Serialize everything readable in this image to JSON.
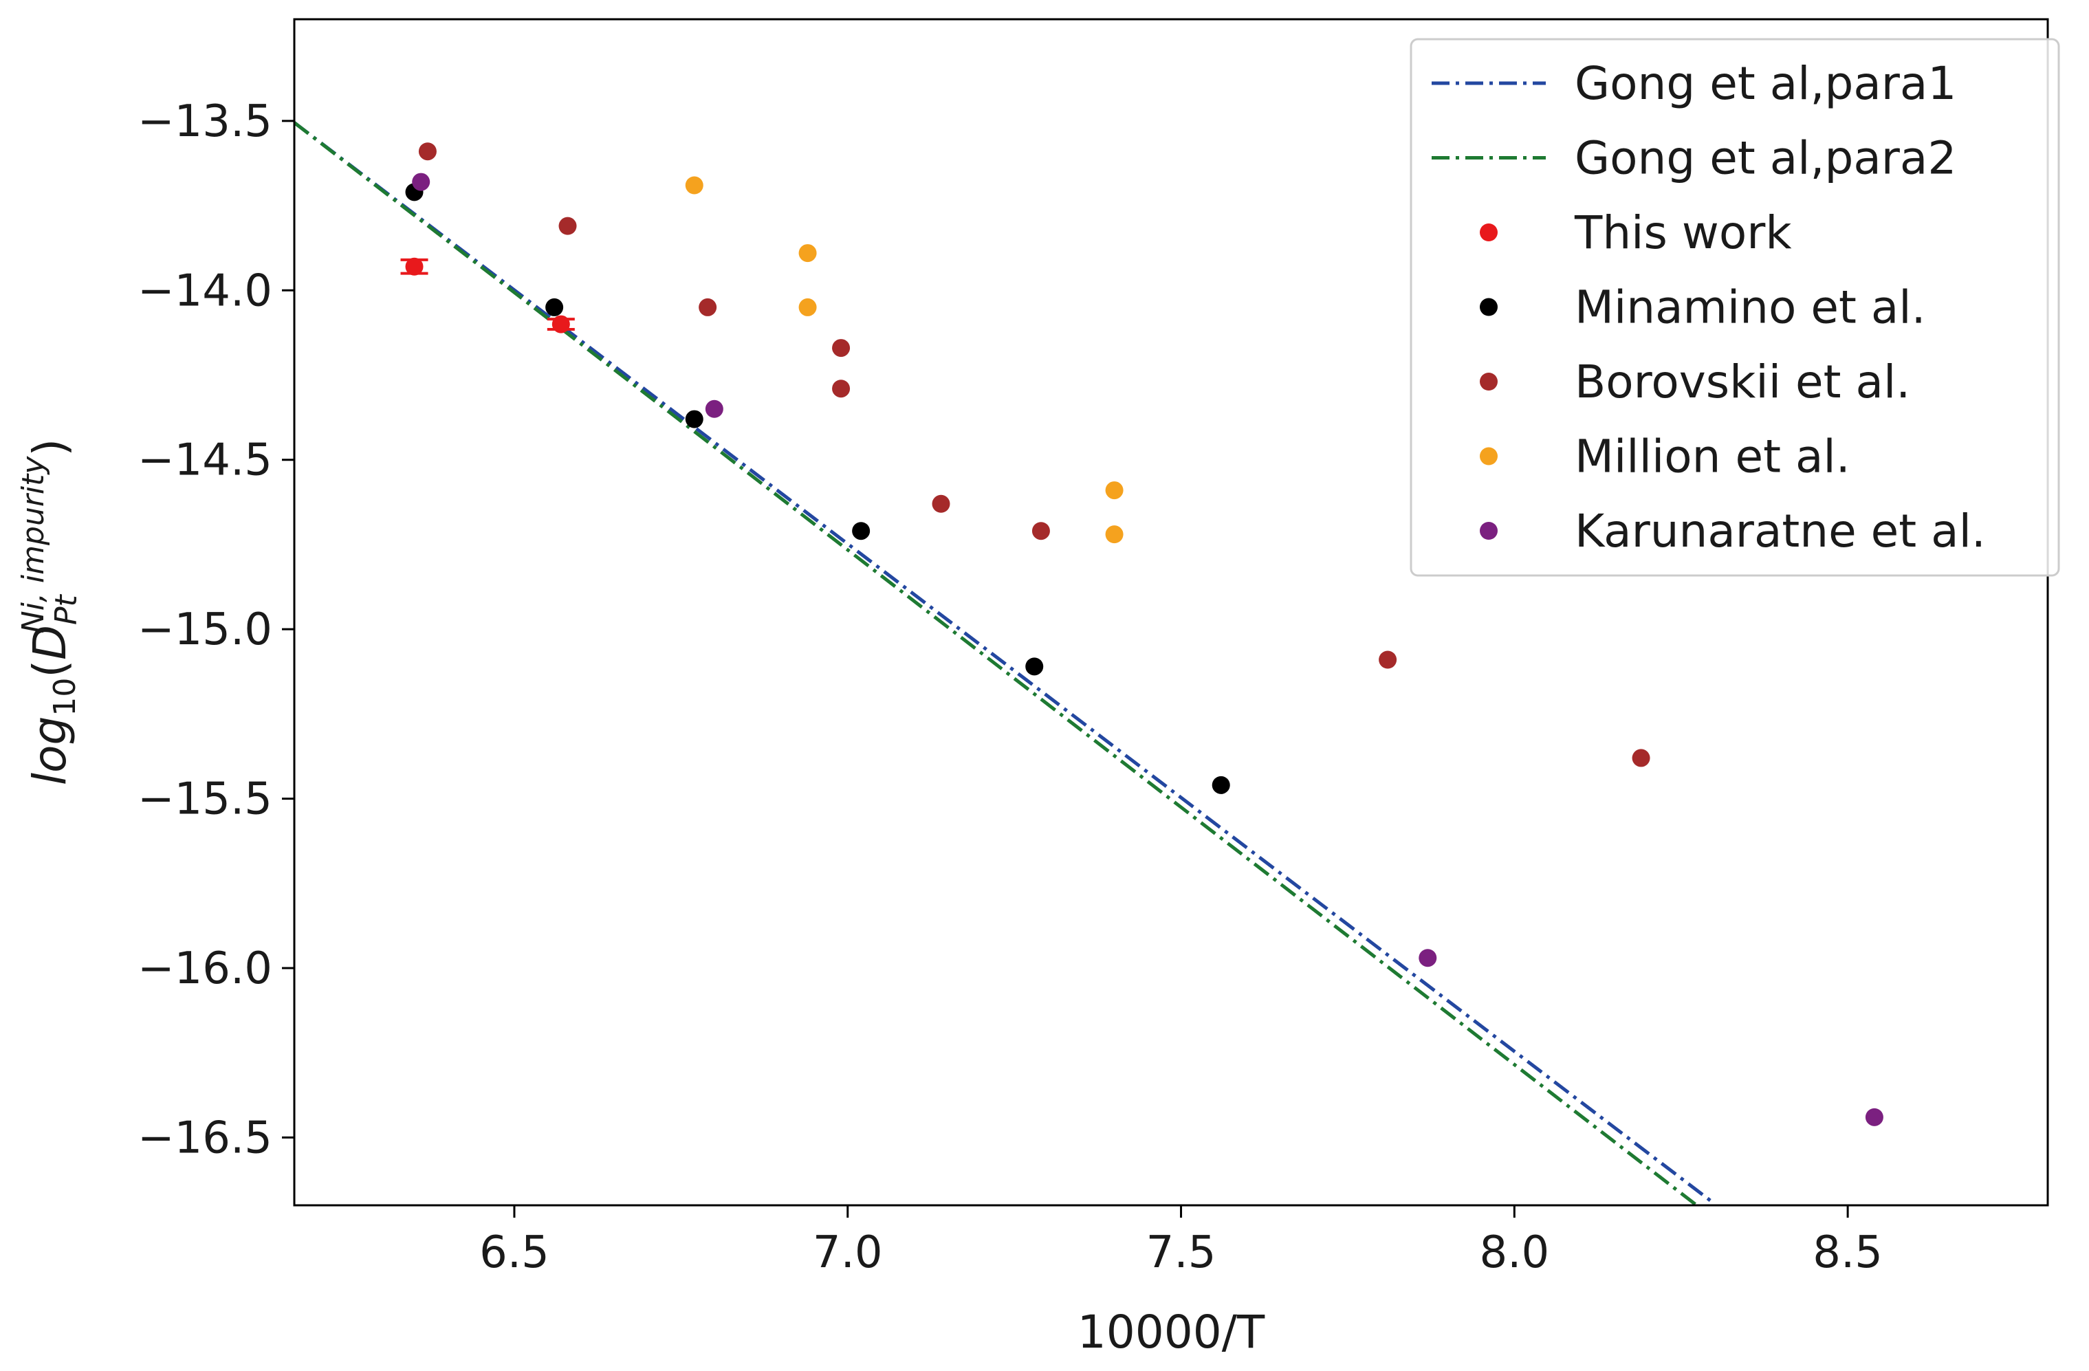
{
  "chart_data": {
    "type": "scatter",
    "title": "",
    "xlabel": "10000/T",
    "ylabel_parts": {
      "base": "log",
      "sub": "10",
      "open": "(",
      "var": "D",
      "var_sub": "Pt",
      "var_sup": "Ni, impurity",
      "close": ")"
    },
    "xlim": [
      6.17,
      8.8
    ],
    "ylim": [
      -16.7,
      -13.2
    ],
    "xticks": [
      6.5,
      7.0,
      7.5,
      8.0,
      8.5
    ],
    "xtick_labels": [
      "6.5",
      "7.0",
      "7.5",
      "8.0",
      "8.5"
    ],
    "yticks": [
      -13.5,
      -14.0,
      -14.5,
      -15.0,
      -15.5,
      -16.0,
      -16.5
    ],
    "ytick_labels": [
      "−13.5",
      "−14.0",
      "−14.5",
      "−15.0",
      "−15.5",
      "−16.0",
      "−16.5"
    ],
    "legend_position": "upper right",
    "lines": [
      {
        "name": "Gong et al,para1",
        "color": "#2347a0",
        "style": "dashdot",
        "x": [
          6.17,
          8.3
        ],
        "y": [
          -13.505,
          -16.695
        ]
      },
      {
        "name": "Gong et al,para2",
        "color": "#1e7a32",
        "style": "dashdot",
        "x": [
          6.17,
          8.28
        ],
        "y": [
          -13.505,
          -16.71
        ]
      }
    ],
    "series": [
      {
        "name": "This work",
        "color": "#e8191c",
        "errorbars": true,
        "points": [
          [
            6.35,
            -13.93,
            0.02
          ],
          [
            6.57,
            -14.1,
            0.015
          ]
        ]
      },
      {
        "name": "Minamino et al.",
        "color": "#000000",
        "points": [
          [
            6.35,
            -13.71
          ],
          [
            6.56,
            -14.05
          ],
          [
            6.77,
            -14.38
          ],
          [
            7.02,
            -14.71
          ],
          [
            7.28,
            -15.11
          ],
          [
            7.56,
            -15.46
          ]
        ]
      },
      {
        "name": "Borovskii et al.",
        "color": "#a52a2a",
        "points": [
          [
            6.37,
            -13.59
          ],
          [
            6.58,
            -13.81
          ],
          [
            6.79,
            -14.05
          ],
          [
            6.99,
            -14.17
          ],
          [
            6.99,
            -14.29
          ],
          [
            7.14,
            -14.63
          ],
          [
            7.29,
            -14.71
          ],
          [
            7.81,
            -15.09
          ],
          [
            8.19,
            -15.38
          ]
        ]
      },
      {
        "name": "Million et al.",
        "color": "#f5a21e",
        "points": [
          [
            6.77,
            -13.69
          ],
          [
            6.94,
            -13.89
          ],
          [
            6.94,
            -14.05
          ],
          [
            7.4,
            -14.59
          ],
          [
            7.4,
            -14.72
          ]
        ]
      },
      {
        "name": "Karunaratne et al.",
        "color": "#7b2080",
        "points": [
          [
            6.36,
            -13.68
          ],
          [
            6.8,
            -14.35
          ],
          [
            7.87,
            -15.97
          ],
          [
            8.54,
            -16.44
          ]
        ]
      }
    ]
  }
}
